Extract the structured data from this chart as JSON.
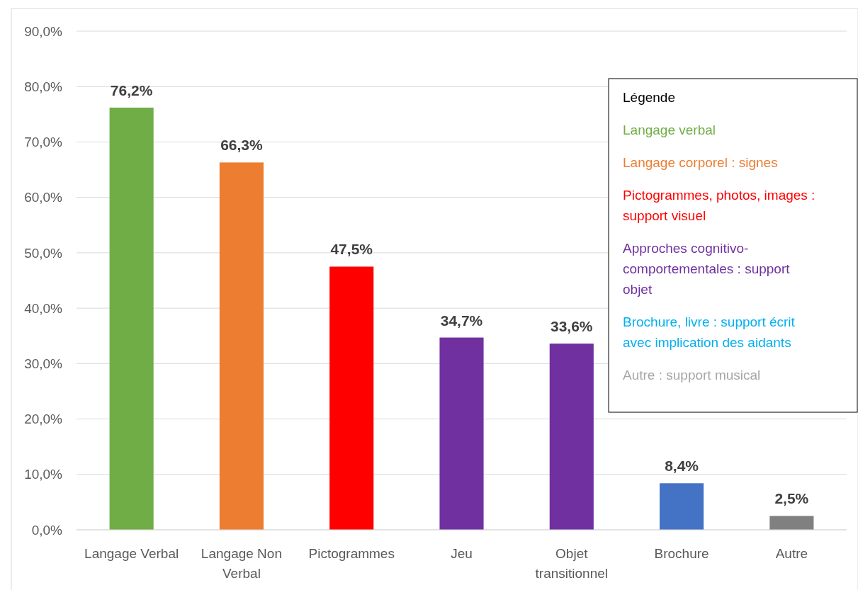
{
  "chart_data": {
    "type": "bar",
    "categories": [
      "Langage Verbal",
      "Langage Non Verbal",
      "Pictogrammes",
      "Jeu",
      "Objet transitionnel",
      "Brochure",
      "Autre"
    ],
    "values": [
      76.2,
      66.3,
      47.5,
      34.7,
      33.6,
      8.4,
      2.5
    ],
    "colors": [
      "#70ad47",
      "#ed7d31",
      "#ff0000",
      "#7030a0",
      "#7030a0",
      "#4472c4",
      "#808080"
    ],
    "value_labels": [
      "76,2%",
      "66,3%",
      "47,5%",
      "34,7%",
      "33,6%",
      "8,4%",
      "2,5%"
    ],
    "ylim": [
      0,
      90
    ],
    "yticks": [
      {
        "value": 0,
        "label": "0,0%"
      },
      {
        "value": 10,
        "label": "10,0%"
      },
      {
        "value": 20,
        "label": "20,0%"
      },
      {
        "value": 30,
        "label": "30,0%"
      },
      {
        "value": 40,
        "label": "40,0%"
      },
      {
        "value": 50,
        "label": "50,0%"
      },
      {
        "value": 60,
        "label": "60,0%"
      },
      {
        "value": 70,
        "label": "70,0%"
      },
      {
        "value": 80,
        "label": "80,0%"
      },
      {
        "value": 90,
        "label": "90,0%"
      }
    ],
    "grid": "y",
    "legend_title": "Légende",
    "annotations": [
      "Langage verbal",
      "Langage corporel : signes",
      "Pictogrammes, photos, images : support visuel",
      "Approches cognitivo-comportementales : support objet",
      "Brochure, livre : support écrit avec implication des aidants",
      "Autre : support musical"
    ]
  }
}
